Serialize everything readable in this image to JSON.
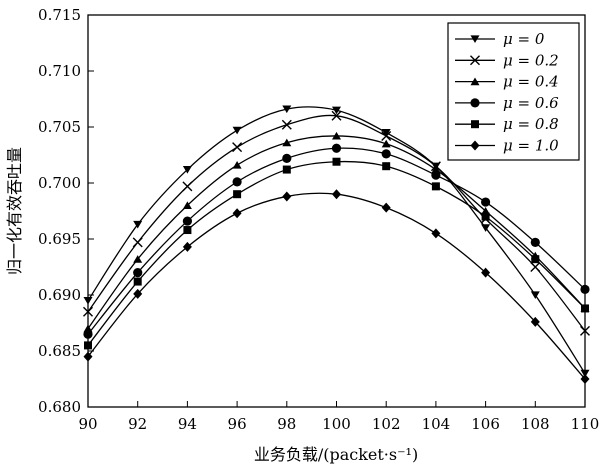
{
  "chart_data": {
    "type": "line",
    "xlabel": "业务负载/(packet·s⁻¹)",
    "ylabel": "归一化有效吞吐量",
    "xlim": [
      90,
      110
    ],
    "ylim": [
      0.68,
      0.715
    ],
    "xticks": [
      90,
      92,
      94,
      96,
      98,
      100,
      102,
      104,
      106,
      108,
      110
    ],
    "yticks": [
      0.68,
      0.685,
      0.69,
      0.695,
      0.7,
      0.705,
      0.71,
      0.715
    ],
    "ytick_labels": [
      "0.680",
      "0.685",
      "0.690",
      "0.695",
      "0.700",
      "0.705",
      "0.710",
      "0.715"
    ],
    "grid": false,
    "legend_position": "top-right",
    "x": [
      90,
      92,
      94,
      96,
      98,
      100,
      102,
      104,
      106,
      108,
      110
    ],
    "series": [
      {
        "name": "μ = 0",
        "marker": "triangle-down",
        "values": [
          0.6895,
          0.6963,
          0.7012,
          0.7047,
          0.7066,
          0.7065,
          0.7045,
          0.7015,
          0.696,
          0.69,
          0.683
        ]
      },
      {
        "name": "μ = 0.2",
        "marker": "x",
        "values": [
          0.6885,
          0.6947,
          0.6997,
          0.7032,
          0.7052,
          0.706,
          0.7042,
          0.7015,
          0.6968,
          0.6925,
          0.6868
        ]
      },
      {
        "name": "μ = 0.4",
        "marker": "triangle-up",
        "values": [
          0.687,
          0.6932,
          0.698,
          0.7016,
          0.7036,
          0.7042,
          0.7035,
          0.7012,
          0.6975,
          0.6935,
          0.6888
        ]
      },
      {
        "name": "μ = 0.6",
        "marker": "circle",
        "values": [
          0.6865,
          0.692,
          0.6966,
          0.7001,
          0.7022,
          0.7031,
          0.7026,
          0.7007,
          0.6983,
          0.6947,
          0.6905
        ]
      },
      {
        "name": "μ = 0.8",
        "marker": "square",
        "values": [
          0.6855,
          0.6912,
          0.6958,
          0.699,
          0.7012,
          0.7019,
          0.7015,
          0.6997,
          0.697,
          0.6932,
          0.6888
        ]
      },
      {
        "name": "μ = 1.0",
        "marker": "diamond",
        "values": [
          0.6845,
          0.6901,
          0.6943,
          0.6973,
          0.6988,
          0.699,
          0.6978,
          0.6955,
          0.692,
          0.6876,
          0.6825
        ]
      }
    ]
  }
}
